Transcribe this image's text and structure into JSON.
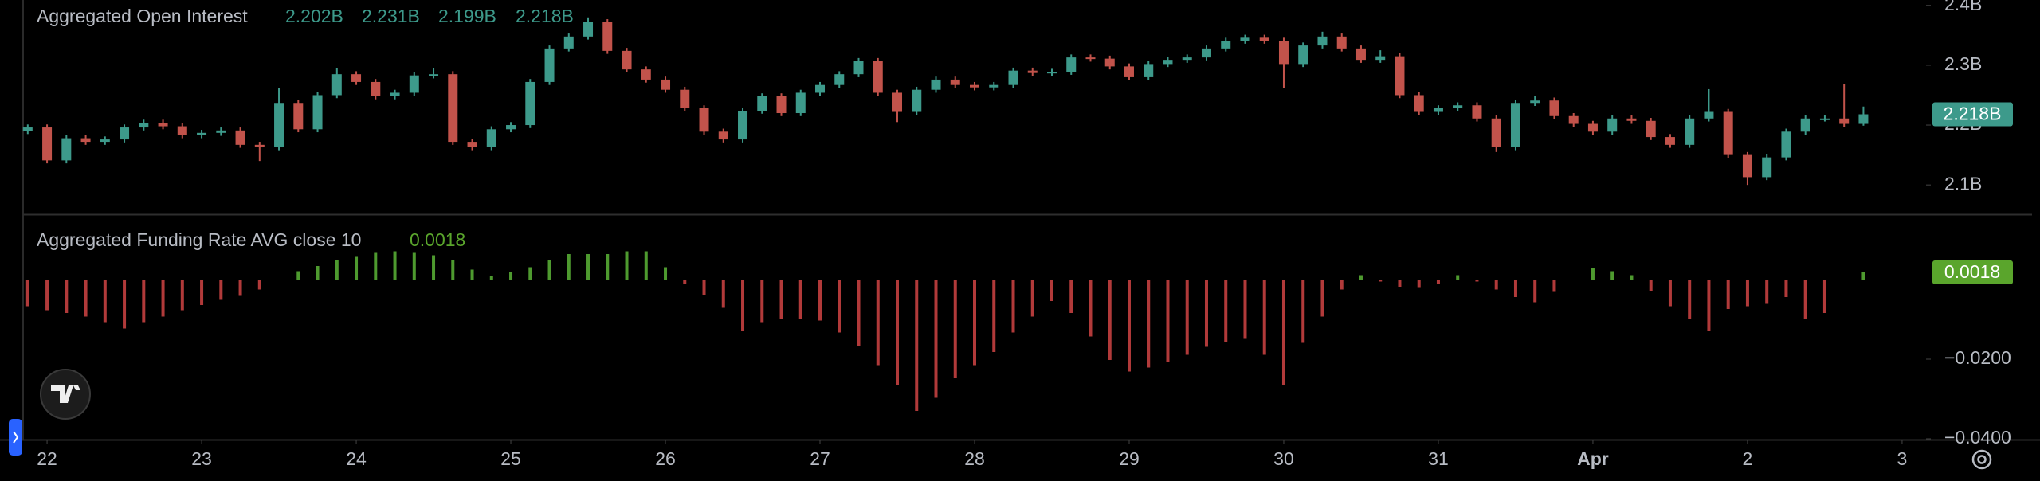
{
  "chart_data": [
    {
      "type": "candlestick",
      "title": "Aggregated Open Interest",
      "ohlc_labels": [
        "2.202B",
        "2.231B",
        "2.199B",
        "2.218B"
      ],
      "up_color": "#3d9a8b",
      "down_color": "#c2534b",
      "xlim": [
        -0.155,
        12.155
      ],
      "ylim": [
        2.051,
        2.409
      ],
      "yticks": [
        {
          "value": 2.4,
          "label": "2.4B"
        },
        {
          "value": 2.3,
          "label": "2.3B"
        },
        {
          "value": 2.2,
          "label": "2.2B"
        },
        {
          "value": 2.1,
          "label": "2.1B"
        }
      ],
      "x": [
        -0.125,
        0,
        0.125,
        0.25,
        0.375,
        0.5,
        0.625,
        0.75,
        0.875,
        1,
        1.125,
        1.25,
        1.375,
        1.5,
        1.625,
        1.75,
        1.875,
        2,
        2.125,
        2.25,
        2.375,
        2.5,
        2.625,
        2.75,
        2.875,
        3,
        3.125,
        3.25,
        3.375,
        3.5,
        3.625,
        3.75,
        3.875,
        4,
        4.125,
        4.25,
        4.375,
        4.5,
        4.625,
        4.75,
        4.875,
        5,
        5.125,
        5.25,
        5.375,
        5.5,
        5.625,
        5.75,
        5.875,
        6,
        6.125,
        6.25,
        6.375,
        6.5,
        6.625,
        6.75,
        6.875,
        7,
        7.125,
        7.25,
        7.375,
        7.5,
        7.625,
        7.75,
        7.875,
        8,
        8.125,
        8.25,
        8.375,
        8.5,
        8.625,
        8.75,
        8.875,
        9,
        9.125,
        9.25,
        9.375,
        9.5,
        9.625,
        9.75,
        9.875,
        10,
        10.125,
        10.25,
        10.375,
        10.5,
        10.625,
        10.75,
        10.875,
        11,
        11.125,
        11.25,
        11.375,
        11.5,
        11.625,
        11.75
      ],
      "open": [
        2.19,
        2.196,
        2.141,
        2.178,
        2.172,
        2.176,
        2.196,
        2.204,
        2.198,
        2.183,
        2.187,
        2.191,
        2.167,
        2.163,
        2.237,
        2.193,
        2.25,
        2.285,
        2.272,
        2.248,
        2.254,
        2.283,
        2.285,
        2.172,
        2.163,
        2.193,
        2.2,
        2.272,
        2.328,
        2.348,
        2.372,
        2.324,
        2.293,
        2.276,
        2.259,
        2.228,
        2.189,
        2.176,
        2.224,
        2.248,
        2.22,
        2.254,
        2.267,
        2.285,
        2.307,
        2.254,
        2.222,
        2.259,
        2.276,
        2.267,
        2.263,
        2.267,
        2.291,
        2.287,
        2.289,
        2.313,
        2.311,
        2.298,
        2.28,
        2.302,
        2.309,
        2.313,
        2.328,
        2.341,
        2.346,
        2.341,
        2.302,
        2.333,
        2.348,
        2.328,
        2.309,
        2.315,
        2.25,
        2.222,
        2.228,
        2.233,
        2.211,
        2.163,
        2.237,
        2.241,
        2.215,
        2.202,
        2.189,
        2.211,
        2.207,
        2.18,
        2.167,
        2.211,
        2.222,
        2.15,
        2.113,
        2.146,
        2.189,
        2.211,
        2.211,
        2.202
      ],
      "high": [
        2.201,
        2.201,
        2.183,
        2.183,
        2.181,
        2.201,
        2.209,
        2.209,
        2.203,
        2.192,
        2.196,
        2.196,
        2.172,
        2.262,
        2.242,
        2.255,
        2.295,
        2.29,
        2.277,
        2.259,
        2.288,
        2.295,
        2.29,
        2.177,
        2.198,
        2.205,
        2.277,
        2.333,
        2.353,
        2.38,
        2.377,
        2.329,
        2.298,
        2.281,
        2.264,
        2.233,
        2.194,
        2.229,
        2.253,
        2.253,
        2.259,
        2.272,
        2.29,
        2.312,
        2.312,
        2.259,
        2.264,
        2.281,
        2.281,
        2.272,
        2.272,
        2.296,
        2.296,
        2.294,
        2.318,
        2.318,
        2.316,
        2.303,
        2.307,
        2.314,
        2.318,
        2.333,
        2.346,
        2.351,
        2.351,
        2.346,
        2.338,
        2.356,
        2.353,
        2.333,
        2.325,
        2.32,
        2.255,
        2.233,
        2.238,
        2.238,
        2.216,
        2.242,
        2.248,
        2.246,
        2.22,
        2.207,
        2.216,
        2.216,
        2.212,
        2.185,
        2.216,
        2.26,
        2.227,
        2.155,
        2.151,
        2.194,
        2.216,
        2.216,
        2.268,
        2.231
      ],
      "low": [
        2.185,
        2.136,
        2.136,
        2.167,
        2.167,
        2.171,
        2.191,
        2.193,
        2.178,
        2.178,
        2.182,
        2.162,
        2.14,
        2.158,
        2.188,
        2.188,
        2.245,
        2.267,
        2.243,
        2.243,
        2.249,
        2.278,
        2.167,
        2.158,
        2.158,
        2.188,
        2.195,
        2.267,
        2.323,
        2.343,
        2.319,
        2.288,
        2.271,
        2.254,
        2.223,
        2.184,
        2.171,
        2.171,
        2.219,
        2.215,
        2.215,
        2.249,
        2.262,
        2.28,
        2.249,
        2.205,
        2.217,
        2.254,
        2.262,
        2.258,
        2.258,
        2.262,
        2.282,
        2.282,
        2.284,
        2.306,
        2.293,
        2.275,
        2.275,
        2.297,
        2.304,
        2.308,
        2.323,
        2.336,
        2.336,
        2.262,
        2.297,
        2.328,
        2.323,
        2.304,
        2.304,
        2.245,
        2.217,
        2.217,
        2.223,
        2.206,
        2.155,
        2.158,
        2.232,
        2.21,
        2.197,
        2.184,
        2.184,
        2.202,
        2.175,
        2.162,
        2.162,
        2.206,
        2.145,
        2.1,
        2.108,
        2.141,
        2.184,
        2.206,
        2.197,
        2.199
      ],
      "close": [
        2.196,
        2.141,
        2.178,
        2.172,
        2.176,
        2.196,
        2.204,
        2.198,
        2.183,
        2.187,
        2.191,
        2.167,
        2.163,
        2.237,
        2.193,
        2.25,
        2.285,
        2.272,
        2.248,
        2.254,
        2.283,
        2.285,
        2.172,
        2.163,
        2.193,
        2.2,
        2.272,
        2.328,
        2.348,
        2.372,
        2.324,
        2.293,
        2.276,
        2.259,
        2.228,
        2.189,
        2.176,
        2.224,
        2.248,
        2.22,
        2.254,
        2.267,
        2.285,
        2.307,
        2.254,
        2.222,
        2.259,
        2.276,
        2.267,
        2.263,
        2.267,
        2.291,
        2.287,
        2.289,
        2.313,
        2.311,
        2.298,
        2.28,
        2.302,
        2.309,
        2.313,
        2.328,
        2.341,
        2.346,
        2.341,
        2.302,
        2.333,
        2.348,
        2.328,
        2.309,
        2.315,
        2.25,
        2.222,
        2.228,
        2.233,
        2.211,
        2.163,
        2.237,
        2.241,
        2.215,
        2.202,
        2.189,
        2.211,
        2.207,
        2.18,
        2.167,
        2.211,
        2.222,
        2.15,
        2.113,
        2.146,
        2.189,
        2.211,
        2.211,
        2.202,
        2.218
      ]
    },
    {
      "type": "bar",
      "title": "Aggregated Funding Rate AVG close 10",
      "positive_color": "#4e9a2f",
      "negative_color": "#b13a3a",
      "badge_color": "#5aa52c",
      "xlim": [
        -0.155,
        12.155
      ],
      "xticks": [
        {
          "value": 0,
          "label": "22"
        },
        {
          "value": 1,
          "label": "23"
        },
        {
          "value": 2,
          "label": "24"
        },
        {
          "value": 3,
          "label": "25"
        },
        {
          "value": 4,
          "label": "26"
        },
        {
          "value": 5,
          "label": "27"
        },
        {
          "value": 6,
          "label": "28"
        },
        {
          "value": 7,
          "label": "29"
        },
        {
          "value": 8,
          "label": "30"
        },
        {
          "value": 9,
          "label": "31"
        },
        {
          "value": 10,
          "label": "Apr"
        },
        {
          "value": 11,
          "label": "2"
        },
        {
          "value": 12,
          "label": "3"
        }
      ],
      "ylim": [
        -0.0402,
        0.0162
      ],
      "yticks": [
        {
          "value": -0.02,
          "label": "−0.0200"
        },
        {
          "value": -0.04,
          "label": "−0.0400"
        }
      ],
      "x": [
        -0.125,
        0,
        0.125,
        0.25,
        0.375,
        0.5,
        0.625,
        0.75,
        0.875,
        1,
        1.125,
        1.25,
        1.375,
        1.5,
        1.625,
        1.75,
        1.875,
        2,
        2.125,
        2.25,
        2.375,
        2.5,
        2.625,
        2.75,
        2.875,
        3,
        3.125,
        3.25,
        3.375,
        3.5,
        3.625,
        3.75,
        3.875,
        4,
        4.125,
        4.25,
        4.375,
        4.5,
        4.625,
        4.75,
        4.875,
        5,
        5.125,
        5.25,
        5.375,
        5.5,
        5.625,
        5.75,
        5.875,
        6,
        6.125,
        6.25,
        6.375,
        6.5,
        6.625,
        6.75,
        6.875,
        7,
        7.125,
        7.25,
        7.375,
        7.5,
        7.625,
        7.75,
        7.875,
        8,
        8.125,
        8.25,
        8.375,
        8.5,
        8.625,
        8.75,
        8.875,
        9,
        9.125,
        9.25,
        9.375,
        9.5,
        9.625,
        9.75,
        9.875,
        10,
        10.125,
        10.25,
        10.375,
        10.5,
        10.625,
        10.75,
        10.875,
        11,
        11.125,
        11.25,
        11.375,
        11.5,
        11.625,
        11.75
      ],
      "values": [
        -0.0067,
        -0.0077,
        -0.0084,
        -0.0093,
        -0.0107,
        -0.0123,
        -0.0107,
        -0.0093,
        -0.0077,
        -0.0064,
        -0.0051,
        -0.0041,
        -0.0025,
        -0.0002,
        0.0021,
        0.0034,
        0.0048,
        0.0057,
        0.0067,
        0.0071,
        0.0067,
        0.0061,
        0.0048,
        0.0025,
        0.001,
        0.0018,
        0.0031,
        0.0048,
        0.0064,
        0.0064,
        0.0064,
        0.0071,
        0.0071,
        0.0031,
        -0.0011,
        -0.0038,
        -0.0071,
        -0.013,
        -0.0107,
        -0.01,
        -0.01,
        -0.0103,
        -0.0133,
        -0.0166,
        -0.0215,
        -0.0264,
        -0.033,
        -0.0297,
        -0.0248,
        -0.0215,
        -0.0182,
        -0.0133,
        -0.0093,
        -0.0054,
        -0.0084,
        -0.0143,
        -0.0202,
        -0.0231,
        -0.0221,
        -0.0208,
        -0.0189,
        -0.0169,
        -0.0156,
        -0.0149,
        -0.0189,
        -0.0264,
        -0.0159,
        -0.0093,
        -0.0025,
        0.0011,
        -0.0005,
        -0.0018,
        -0.0021,
        -0.0011,
        0.0011,
        -0.0005,
        -0.0025,
        -0.0044,
        -0.0057,
        -0.0031,
        -0.0002,
        0.0028,
        0.0021,
        0.0011,
        -0.0028,
        -0.0067,
        -0.01,
        -0.013,
        -0.0074,
        -0.0067,
        -0.0061,
        -0.0044,
        -0.01,
        -0.0084,
        -0.0002,
        0.0018
      ]
    }
  ]
}
